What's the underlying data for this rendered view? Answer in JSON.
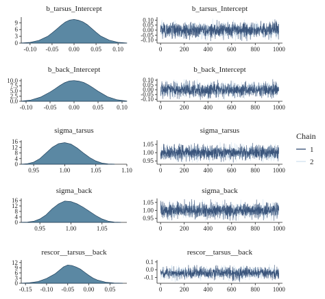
{
  "colors": {
    "density_fill": "#5b88a3",
    "density_line": "#1f3f5a",
    "chain1": "#1f3b66",
    "chain2": "#cfe0ee",
    "axis": "#222222"
  },
  "legend": {
    "title": "Chain",
    "items": [
      "1",
      "2"
    ],
    "placement": "right"
  },
  "chart_data": [
    {
      "type": "area",
      "title": "b_tarsus_Intercept",
      "xlim": [
        -0.12,
        0.12
      ],
      "ylim": [
        0,
        11.5
      ],
      "x_ticks": [
        -0.1,
        -0.05,
        0.0,
        0.05,
        0.1
      ],
      "x_tick_labels": [
        "-0.10",
        "-0.05",
        "0.00",
        "0.05",
        "0.10"
      ],
      "y_ticks": [
        0,
        3,
        6,
        9
      ],
      "y_tick_labels": [
        "0",
        "3",
        "6",
        "9"
      ],
      "x": [
        -0.12,
        -0.1,
        -0.08,
        -0.06,
        -0.05,
        -0.04,
        -0.03,
        -0.02,
        -0.01,
        0.0,
        0.01,
        0.02,
        0.03,
        0.04,
        0.05,
        0.06,
        0.08,
        0.1,
        0.12
      ],
      "y": [
        0.05,
        0.3,
        1.2,
        3.0,
        4.5,
        6.1,
        7.8,
        9.3,
        10.2,
        10.5,
        10.1,
        9.4,
        8.2,
        6.5,
        4.8,
        3.2,
        1.3,
        0.35,
        0.05
      ]
    },
    {
      "type": "line",
      "title": "b_tarsus_Intercept",
      "xlim": [
        -30,
        1030
      ],
      "ylim": [
        -0.13,
        0.13
      ],
      "x_ticks": [
        0,
        200,
        400,
        600,
        800,
        1000
      ],
      "x_tick_labels": [
        "0",
        "200",
        "400",
        "600",
        "800",
        "1000"
      ],
      "y_ticks": [
        -0.1,
        -0.05,
        0.0,
        0.05,
        0.1
      ],
      "y_tick_labels": [
        "-0.10",
        "-0.05",
        "0.00",
        "0.05",
        "0.10"
      ],
      "n": 1000,
      "center": 0.0,
      "spread": 0.038,
      "clip": [
        -0.11,
        0.12
      ],
      "series": [
        {
          "name": "1"
        },
        {
          "name": "2"
        }
      ]
    },
    {
      "type": "area",
      "title": "b_back_Intercept",
      "xlim": [
        -0.11,
        0.11
      ],
      "ylim": [
        0,
        11
      ],
      "x_ticks": [
        -0.1,
        -0.05,
        0.0,
        0.05,
        0.1
      ],
      "x_tick_labels": [
        "-0.10",
        "-0.05",
        "0.00",
        "0.05",
        "0.10"
      ],
      "y_ticks": [
        0,
        2.5,
        5,
        7.5,
        10
      ],
      "y_tick_labels": [
        "0.0",
        "2.5",
        "5.0",
        "7.5",
        "10.0"
      ],
      "x": [
        -0.11,
        -0.09,
        -0.07,
        -0.05,
        -0.04,
        -0.03,
        -0.02,
        -0.01,
        0.0,
        0.01,
        0.02,
        0.03,
        0.04,
        0.05,
        0.07,
        0.09,
        0.11
      ],
      "y": [
        0.05,
        0.6,
        2.0,
        4.5,
        6.0,
        7.6,
        9.0,
        9.9,
        10.1,
        9.8,
        9.2,
        8.0,
        6.5,
        4.9,
        2.2,
        0.7,
        0.1
      ]
    },
    {
      "type": "line",
      "title": "b_back_Intercept",
      "xlim": [
        -30,
        1030
      ],
      "ylim": [
        -0.12,
        0.115
      ],
      "x_ticks": [
        0,
        200,
        400,
        600,
        800,
        1000
      ],
      "x_tick_labels": [
        "0",
        "200",
        "400",
        "600",
        "800",
        "1000"
      ],
      "y_ticks": [
        -0.1,
        -0.05,
        0.0,
        0.05,
        0.1
      ],
      "y_tick_labels": [
        "-0.10",
        "-0.05",
        "0.00",
        "0.05",
        "0.10"
      ],
      "n": 1000,
      "center": 0.0,
      "spread": 0.038,
      "clip": [
        -0.11,
        0.11
      ],
      "series": [
        {
          "name": "1"
        },
        {
          "name": "2"
        }
      ]
    },
    {
      "type": "area",
      "title": "sigma_tarsus",
      "xlim": [
        0.93,
        1.1
      ],
      "ylim": [
        0,
        17
      ],
      "x_ticks": [
        0.95,
        1.0,
        1.05,
        1.1
      ],
      "x_tick_labels": [
        "0.95",
        "1.00",
        "1.05",
        "1.10"
      ],
      "y_ticks": [
        0,
        4,
        8,
        12,
        16
      ],
      "y_tick_labels": [
        "0",
        "4",
        "8",
        "12",
        "16"
      ],
      "x": [
        0.93,
        0.94,
        0.95,
        0.96,
        0.97,
        0.98,
        0.99,
        1.0,
        1.01,
        1.02,
        1.03,
        1.04,
        1.05,
        1.06,
        1.07,
        1.08
      ],
      "y": [
        0.05,
        0.4,
        1.5,
        4.0,
        8.0,
        12.0,
        14.6,
        15.3,
        14.3,
        11.5,
        8.0,
        4.8,
        2.3,
        0.8,
        0.2,
        0.05
      ]
    },
    {
      "type": "line",
      "title": "sigma_tarsus",
      "xlim": [
        -30,
        1030
      ],
      "ylim": [
        0.93,
        1.075
      ],
      "x_ticks": [
        0,
        200,
        400,
        600,
        800,
        1000
      ],
      "x_tick_labels": [
        "0",
        "200",
        "400",
        "600",
        "800",
        "1000"
      ],
      "y_ticks": [
        0.95,
        1.0,
        1.05
      ],
      "y_tick_labels": [
        "0.95",
        "1.00",
        "1.05"
      ],
      "n": 1000,
      "center": 1.0,
      "spread": 0.022,
      "clip": [
        0.94,
        1.065
      ],
      "series": [
        {
          "name": "1"
        },
        {
          "name": "2"
        }
      ]
    },
    {
      "type": "area",
      "title": "sigma_back",
      "xlim": [
        0.92,
        1.09
      ],
      "ylim": [
        0,
        17.5
      ],
      "x_ticks": [
        0.95,
        1.0,
        1.05
      ],
      "x_tick_labels": [
        "0.95",
        "1.00",
        "1.05"
      ],
      "y_ticks": [
        0,
        4,
        8,
        12,
        16
      ],
      "y_tick_labels": [
        "0",
        "4",
        "8",
        "12",
        "16"
      ],
      "x": [
        0.92,
        0.93,
        0.94,
        0.95,
        0.96,
        0.97,
        0.98,
        0.99,
        1.0,
        1.01,
        1.02,
        1.03,
        1.04,
        1.05,
        1.06,
        1.07,
        1.08
      ],
      "y": [
        0.05,
        0.2,
        0.8,
        2.5,
        5.5,
        10.0,
        13.5,
        15.6,
        15.2,
        13.5,
        11.0,
        8.0,
        5.0,
        2.5,
        0.9,
        0.2,
        0.05
      ]
    },
    {
      "type": "line",
      "title": "sigma_back",
      "xlim": [
        -30,
        1030
      ],
      "ylim": [
        0.925,
        1.075
      ],
      "x_ticks": [
        0,
        200,
        400,
        600,
        800,
        1000
      ],
      "x_tick_labels": [
        "0",
        "200",
        "400",
        "600",
        "800",
        "1000"
      ],
      "y_ticks": [
        0.95,
        1.0,
        1.05
      ],
      "y_tick_labels": [
        "0.95",
        "1.00",
        "1.05"
      ],
      "n": 1000,
      "center": 1.0,
      "spread": 0.024,
      "clip": [
        0.935,
        1.07
      ],
      "series": [
        {
          "name": "1"
        },
        {
          "name": "2"
        }
      ]
    },
    {
      "type": "area",
      "title": "rescor__tarsus__back",
      "xlim": [
        -0.16,
        0.09
      ],
      "ylim": [
        0,
        13.5
      ],
      "x_ticks": [
        -0.15,
        -0.1,
        -0.05,
        0.0,
        0.05
      ],
      "x_tick_labels": [
        "-0.15",
        "-0.10",
        "-0.05",
        "0.00",
        "0.05"
      ],
      "y_ticks": [
        0,
        3,
        6,
        9,
        12
      ],
      "y_tick_labels": [
        "0",
        "3",
        "6",
        "9",
        "12"
      ],
      "x": [
        -0.16,
        -0.14,
        -0.12,
        -0.1,
        -0.08,
        -0.07,
        -0.06,
        -0.05,
        -0.04,
        -0.03,
        -0.02,
        -0.01,
        0.0,
        0.01,
        0.02,
        0.04,
        0.06,
        0.08
      ],
      "y": [
        0.05,
        0.3,
        1.0,
        2.8,
        5.5,
        7.5,
        9.5,
        10.6,
        10.3,
        9.4,
        8.2,
        6.4,
        4.6,
        3.0,
        1.9,
        0.6,
        0.15,
        0.05
      ]
    },
    {
      "type": "line",
      "title": "rescor__tarsus__back",
      "xlim": [
        -30,
        1030
      ],
      "ylim": [
        -0.175,
        0.125
      ],
      "x_ticks": [
        0,
        200,
        400,
        600,
        800,
        1000
      ],
      "x_tick_labels": [
        "0",
        "200",
        "400",
        "600",
        "800",
        "1000"
      ],
      "y_ticks": [
        -0.1,
        0.0,
        0.1
      ],
      "y_tick_labels": [
        "-0.1",
        "0.0",
        "0.1"
      ],
      "n": 1000,
      "center": -0.04,
      "spread": 0.038,
      "clip": [
        -0.16,
        0.07
      ],
      "series": [
        {
          "name": "1"
        },
        {
          "name": "2"
        }
      ]
    }
  ]
}
